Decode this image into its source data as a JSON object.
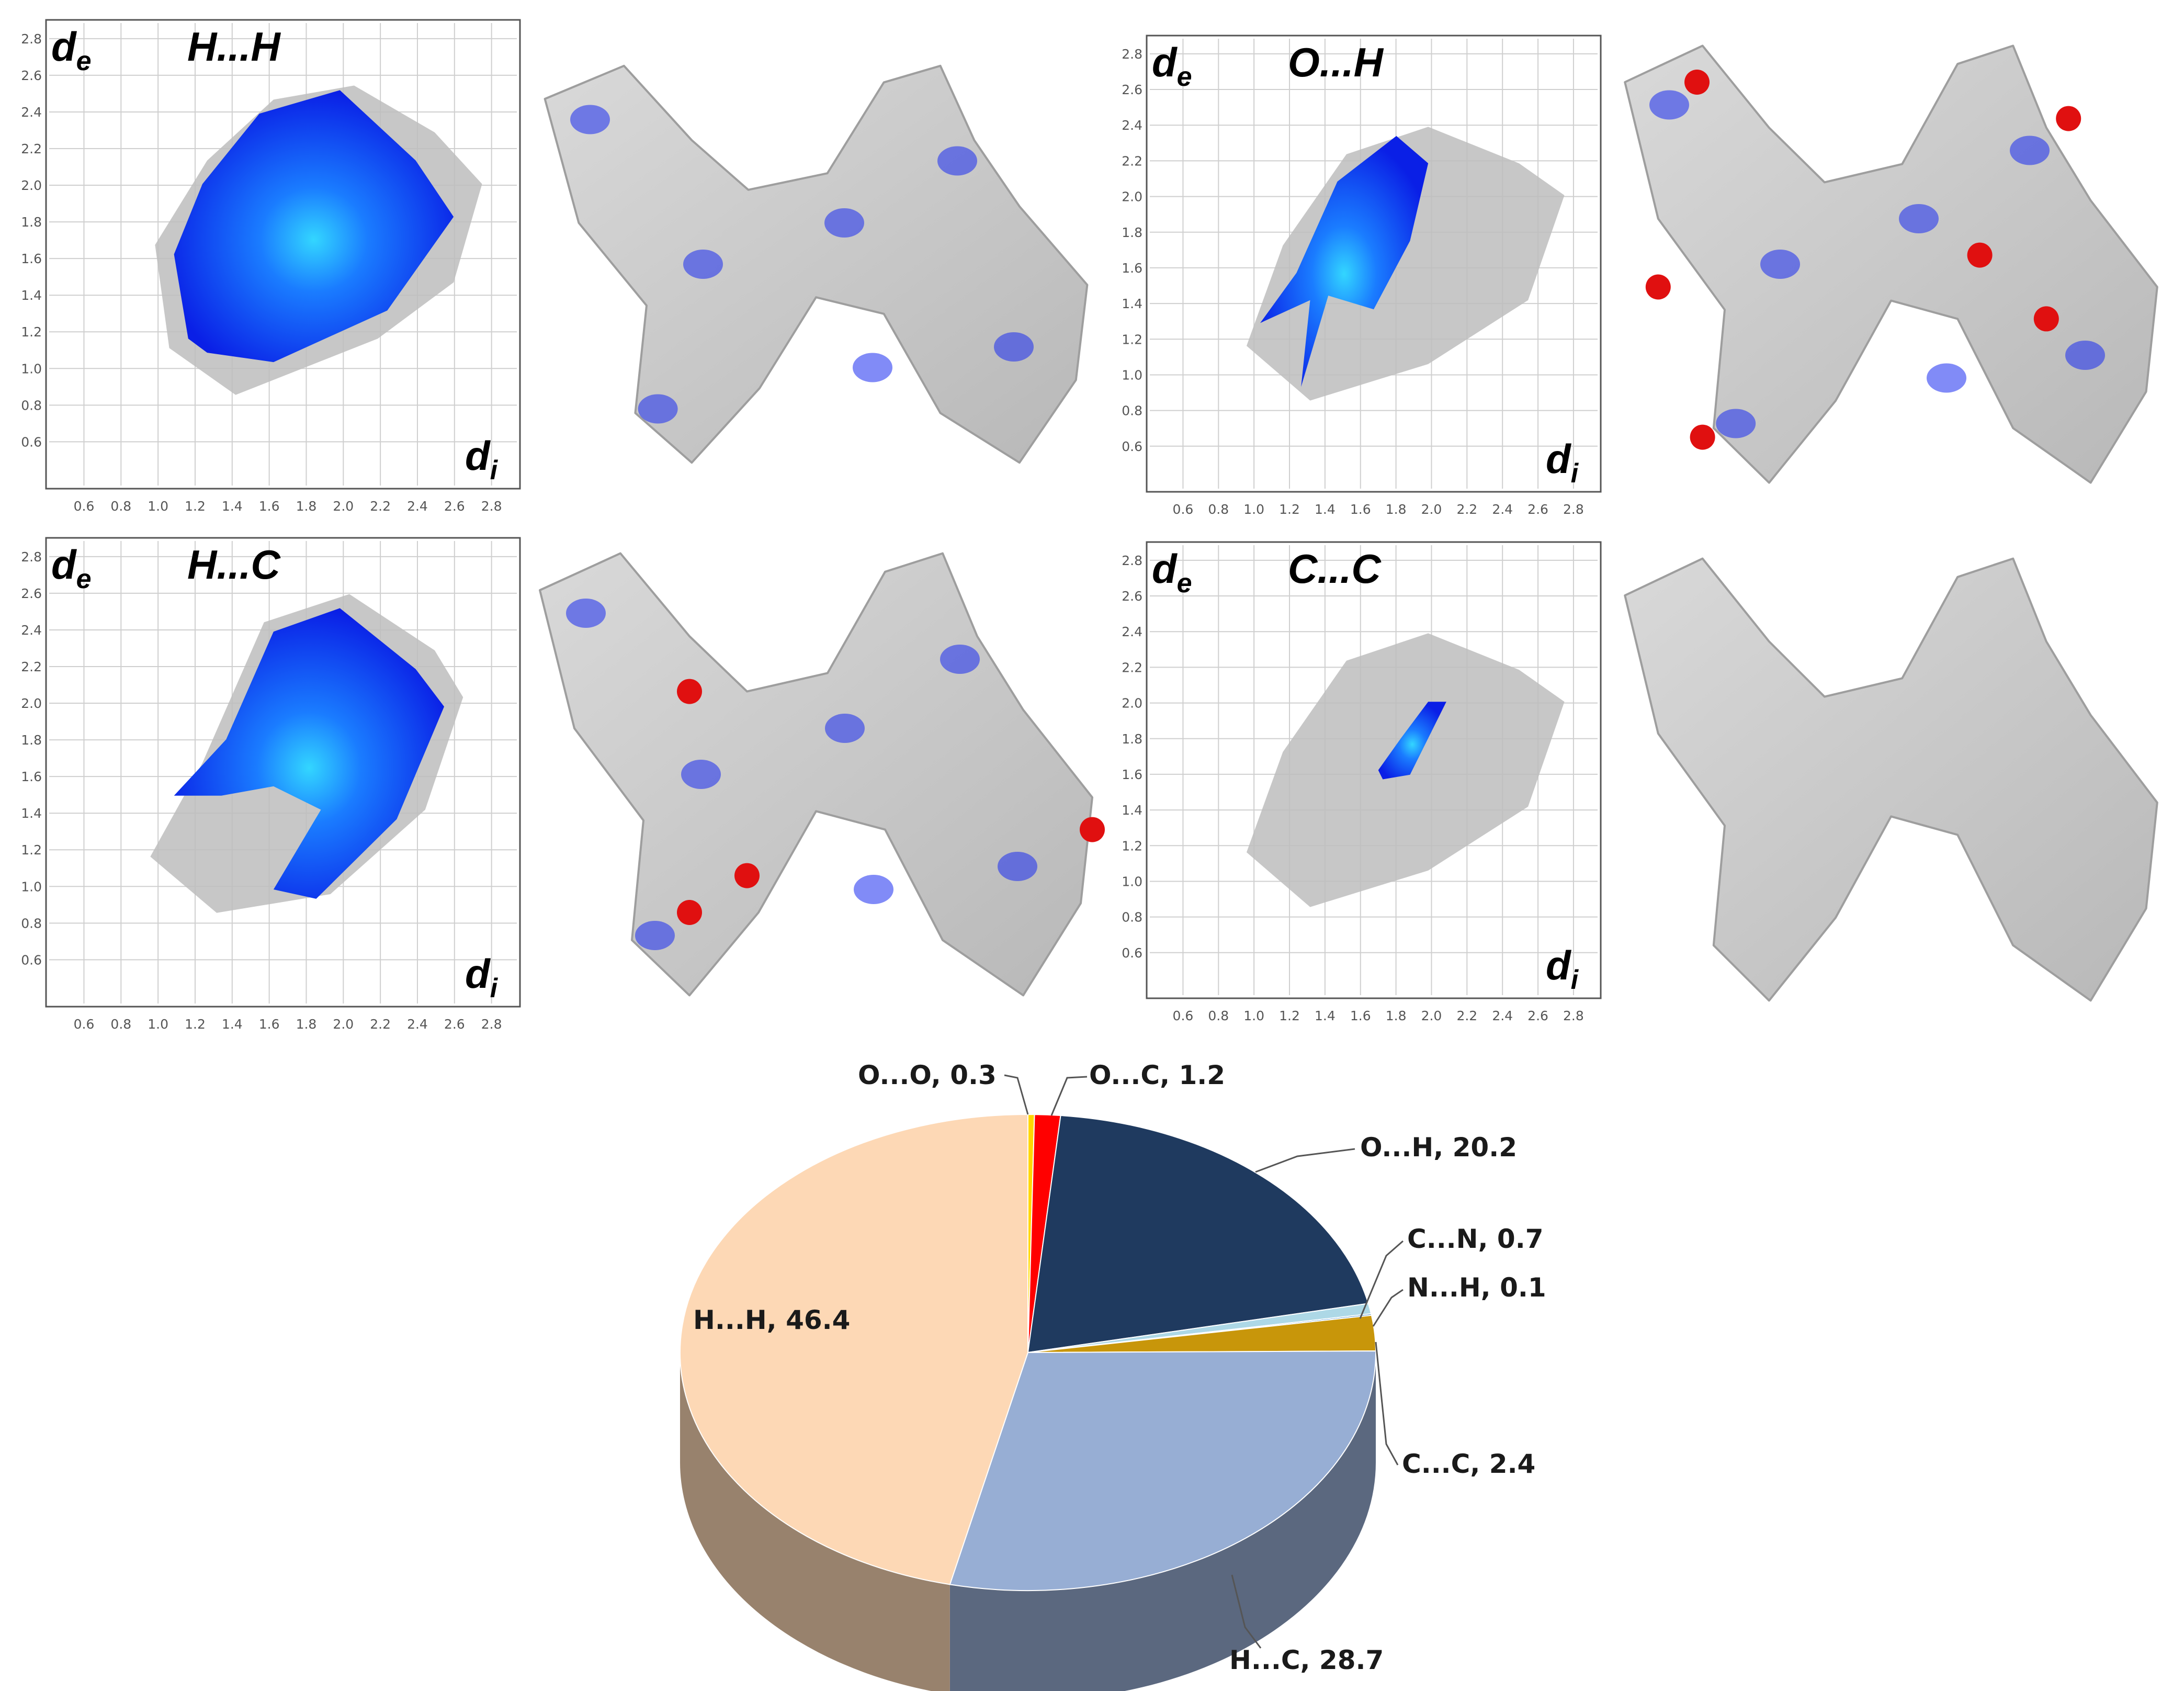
{
  "fingerprint_panels": [
    {
      "title": "H...H",
      "de_sub": "e",
      "di_sub": "i"
    },
    {
      "title": "O...H",
      "de_sub": "e",
      "di_sub": "i"
    },
    {
      "title": "H...C",
      "de_sub": "e",
      "di_sub": "i"
    },
    {
      "title": "C...C",
      "de_sub": "e",
      "di_sub": "i"
    }
  ],
  "axis_symbol": "d",
  "x_ticks": [
    "0.6",
    "0.8",
    "1.0",
    "1.2",
    "1.4",
    "1.6",
    "1.8",
    "2.0",
    "2.2",
    "2.4",
    "2.6",
    "2.8"
  ],
  "y_ticks": [
    "0.6",
    "0.8",
    "1.0",
    "1.2",
    "1.4",
    "1.6",
    "1.8",
    "2.0",
    "2.2",
    "2.4",
    "2.6",
    "2.8"
  ],
  "colors": {
    "fingerprint_highlight": "#1133ee",
    "fingerprint_background": "#bdbdbd",
    "surface": "#c8c8c8"
  },
  "chart_data": [
    {
      "type": "pie",
      "style": "3d",
      "title": "",
      "slices": [
        {
          "label": "O...O, 0.3",
          "name": "O...O",
          "value": 0.3,
          "color": "#ffd700"
        },
        {
          "label": "O...C, 1.2",
          "name": "O...C",
          "value": 1.2,
          "color": "#ff0000"
        },
        {
          "label": "O...H, 20.2",
          "name": "O...H",
          "value": 20.2,
          "color": "#1f3a5f"
        },
        {
          "label": "C...N, 0.7",
          "name": "C...N",
          "value": 0.7,
          "color": "#add8e6"
        },
        {
          "label": "N...H, 0.1",
          "name": "N...H",
          "value": 0.1,
          "color": "#1f6fb5"
        },
        {
          "label": "C...C, 2.4",
          "name": "C...C",
          "value": 2.4,
          "color": "#c8960a"
        },
        {
          "label": "H...C, 28.7",
          "name": "H...C",
          "value": 28.7,
          "color": "#97aed4"
        },
        {
          "label": "H...H, 46.4",
          "name": "H...H",
          "value": 46.4,
          "color": "#fdd8b5"
        }
      ]
    }
  ]
}
